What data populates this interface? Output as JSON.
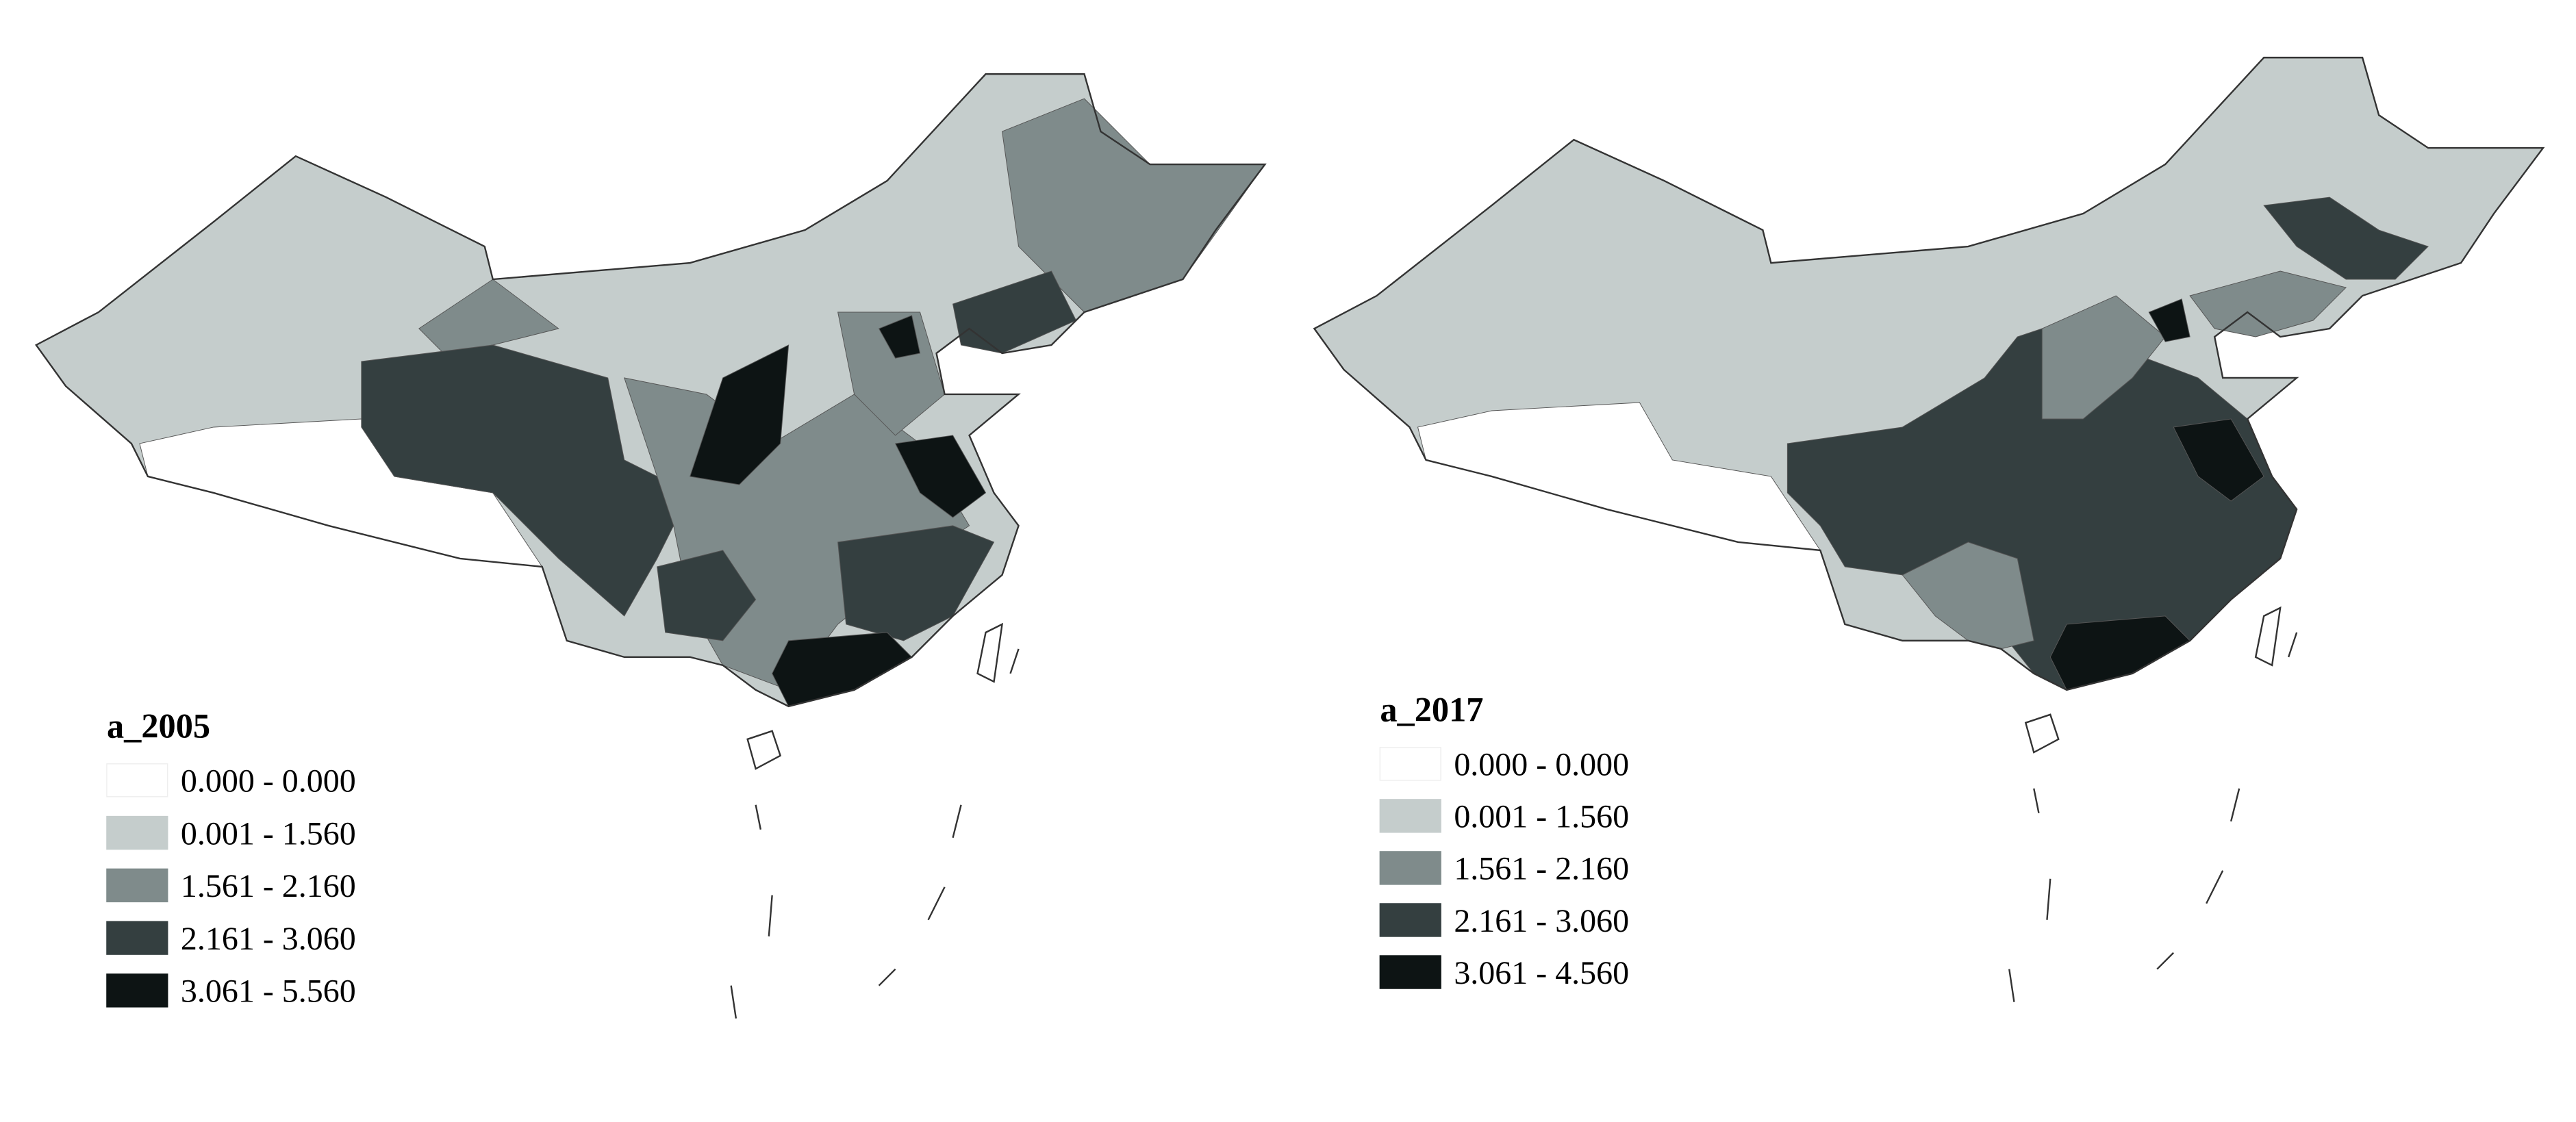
{
  "maps": [
    {
      "title": "a_2005",
      "legend": [
        {
          "label": "0.000 - 0.000",
          "color": "#ffffff"
        },
        {
          "label": "0.001 - 1.560",
          "color": "#c5cdcc"
        },
        {
          "label": "1.561 - 2.160",
          "color": "#7f8b8b"
        },
        {
          "label": "2.161 - 3.060",
          "color": "#343f40"
        },
        {
          "label": "3.061 - 5.560",
          "color": "#0d1414"
        }
      ]
    },
    {
      "title": "a_2017",
      "legend": [
        {
          "label": "0.000 - 0.000",
          "color": "#ffffff"
        },
        {
          "label": "0.001 - 1.560",
          "color": "#c5cdcc"
        },
        {
          "label": "1.561 - 2.160",
          "color": "#7f8b8b"
        },
        {
          "label": "2.161 - 3.060",
          "color": "#343f40"
        },
        {
          "label": "3.061 - 4.560",
          "color": "#0d1414"
        }
      ]
    }
  ]
}
